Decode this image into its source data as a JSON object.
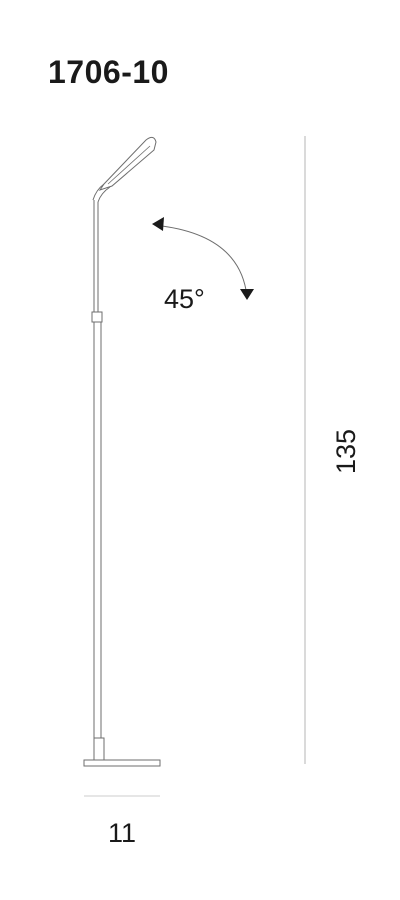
{
  "title": "1706-10",
  "dimensions": {
    "height_label": "135",
    "width_label": "11",
    "angle_label": "45°"
  },
  "colors": {
    "line": "#6e6e6e",
    "text": "#1a1a1a",
    "dimension_line": "#b5b5b5"
  }
}
